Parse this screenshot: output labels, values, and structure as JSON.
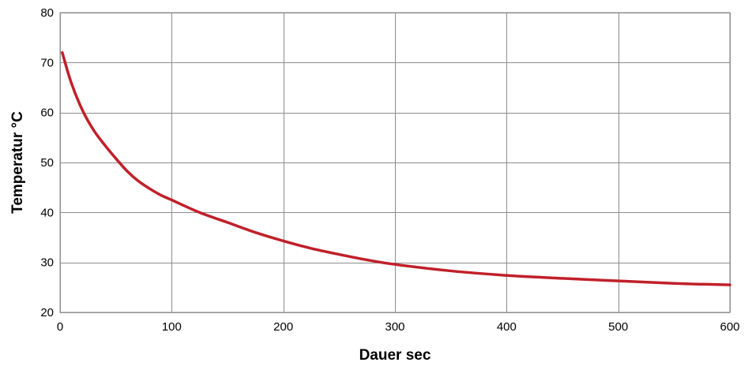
{
  "chart_data": {
    "type": "line",
    "title": "",
    "xlabel": "Dauer sec",
    "ylabel": "Temperatur °C",
    "xlim": [
      0,
      600
    ],
    "ylim": [
      20,
      80
    ],
    "x_ticks": [
      0,
      100,
      200,
      300,
      400,
      500,
      600
    ],
    "y_ticks": [
      20,
      30,
      40,
      50,
      60,
      70,
      80
    ],
    "grid": true,
    "legend": "none",
    "series": [
      {
        "color": "#c0202a",
        "x": [
          2,
          10,
          20,
          30,
          40,
          50,
          60,
          70,
          80,
          90,
          100,
          125,
          150,
          175,
          200,
          225,
          250,
          275,
          300,
          350,
          400,
          450,
          500,
          550,
          600
        ],
        "y": [
          72,
          66,
          60.5,
          56.5,
          53.5,
          50.8,
          48.3,
          46.3,
          44.8,
          43.5,
          42.5,
          40.0,
          38.0,
          36.0,
          34.3,
          32.8,
          31.6,
          30.5,
          29.6,
          28.3,
          27.4,
          26.8,
          26.3,
          25.8,
          25.5
        ]
      }
    ]
  }
}
